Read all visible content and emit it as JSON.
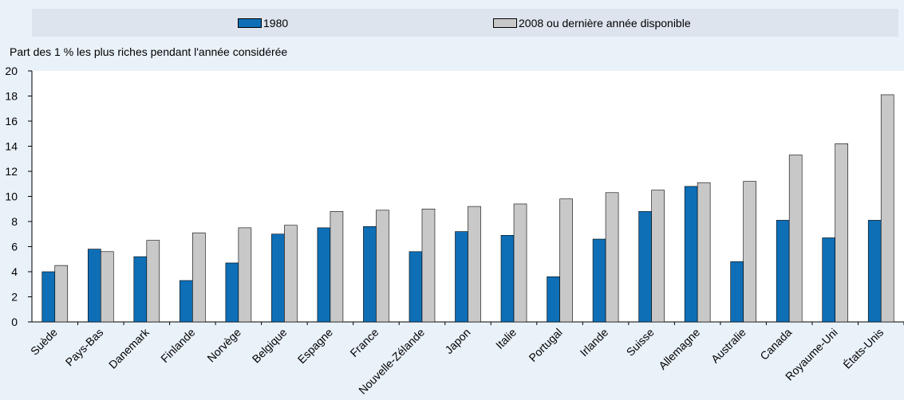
{
  "colors": {
    "series_1980": "#0e6fb6",
    "series_2008": "#c8c8c8",
    "background": "#e9f1f9",
    "legend_background": "#dde4ee"
  },
  "chart_data": {
    "type": "bar",
    "ylabel": "Part des 1 %  les plus riches pendant l'année considérée",
    "ylim": [
      0,
      20
    ],
    "yticks": [
      0,
      2,
      4,
      6,
      8,
      10,
      12,
      14,
      16,
      18,
      20
    ],
    "legend_position": "top",
    "grid": false,
    "categories": [
      "Suède",
      "Pays-Bas",
      "Danemark",
      "Finlande",
      "Norvège",
      "Belgique",
      "Espagne",
      "France",
      "Nouvelle-Zélande",
      "Japon",
      "Italie",
      "Portugal",
      "Irlande",
      "Suisse",
      "Allemagne",
      "Australie",
      "Canada",
      "Royaume-Uni",
      "États-Unis"
    ],
    "series": [
      {
        "name": "1980",
        "values": [
          4.0,
          5.8,
          5.2,
          3.3,
          4.7,
          7.0,
          7.5,
          7.6,
          5.6,
          7.2,
          6.9,
          3.6,
          6.6,
          8.8,
          10.8,
          4.8,
          8.1,
          6.7,
          8.1
        ]
      },
      {
        "name": "2008 ou dernière année disponible",
        "values": [
          4.5,
          5.6,
          6.5,
          7.1,
          7.5,
          7.7,
          8.8,
          8.9,
          9.0,
          9.2,
          9.4,
          9.8,
          10.3,
          10.5,
          11.1,
          11.2,
          13.3,
          14.2,
          18.1
        ]
      }
    ]
  }
}
